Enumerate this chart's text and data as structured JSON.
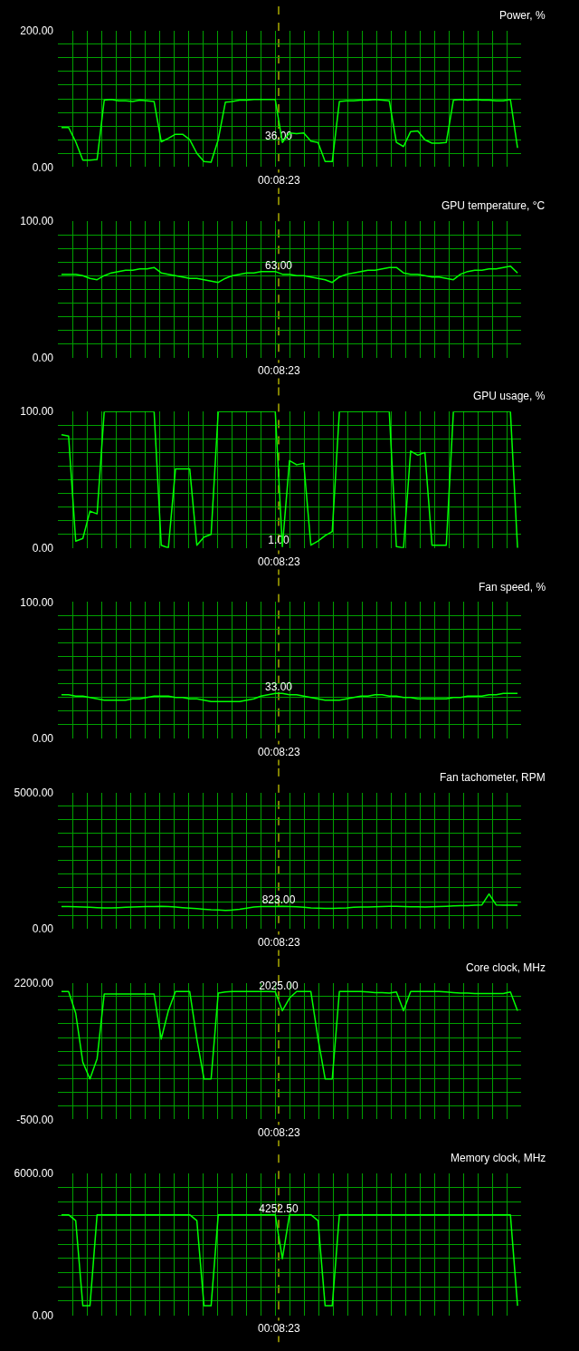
{
  "chart_data": [
    {
      "type": "line",
      "title": "Power, %",
      "categories": [
        null,
        null,
        null,
        null,
        null,
        null,
        null,
        null,
        null,
        null,
        null,
        null,
        null,
        null,
        null,
        null,
        null,
        null,
        null,
        null,
        null,
        null,
        null,
        null,
        null,
        null,
        null,
        null,
        null,
        null,
        null,
        null,
        null,
        null,
        null,
        null,
        null,
        null,
        null,
        null,
        null,
        null,
        null,
        null,
        null,
        null,
        null,
        null,
        null,
        null,
        null,
        null,
        null,
        null,
        null,
        null,
        null,
        null,
        null,
        null,
        null,
        null,
        null,
        null,
        null
      ],
      "color": "#00ff00",
      "values": [
        58,
        58,
        37,
        10,
        10,
        11,
        98,
        99,
        97,
        97,
        96,
        98,
        97,
        96,
        37,
        42,
        48,
        48,
        40,
        20,
        8,
        7,
        40,
        95,
        96,
        98,
        98,
        99,
        99,
        99,
        99,
        36,
        50,
        49,
        50,
        38,
        36,
        8,
        8,
        96,
        97,
        97,
        98,
        98,
        99,
        98,
        97,
        36,
        30,
        52,
        53,
        40,
        35,
        35,
        36,
        98,
        99,
        98,
        99,
        98,
        98,
        97,
        97,
        99,
        28
      ],
      "ylim": [
        0,
        200
      ],
      "yticks": [
        {
          "value": 0,
          "label": "0.00"
        },
        {
          "value": 20,
          "label": null
        },
        {
          "value": 40,
          "label": null
        },
        {
          "value": 60,
          "label": null
        },
        {
          "value": 80,
          "label": null
        },
        {
          "value": 100,
          "label": null
        },
        {
          "value": 120,
          "label": null
        },
        {
          "value": 140,
          "label": null
        },
        {
          "value": 160,
          "label": null
        },
        {
          "value": 180,
          "label": null
        },
        {
          "value": 200,
          "label": "200.00"
        }
      ],
      "grid": true,
      "tick_labels": "y",
      "annotations": [
        {
          "text": "36.00",
          "y": 36
        },
        "00:08:23"
      ]
    },
    {
      "type": "line",
      "title": "GPU temperature, °C",
      "categories": [
        null,
        null,
        null,
        null,
        null,
        null,
        null,
        null,
        null,
        null,
        null,
        null,
        null,
        null,
        null,
        null,
        null,
        null,
        null,
        null,
        null,
        null,
        null,
        null,
        null,
        null,
        null,
        null,
        null,
        null,
        null,
        null,
        null,
        null,
        null,
        null,
        null,
        null,
        null,
        null,
        null,
        null,
        null,
        null,
        null,
        null,
        null,
        null,
        null,
        null,
        null,
        null,
        null,
        null,
        null,
        null,
        null,
        null,
        null,
        null,
        null,
        null,
        null,
        null,
        null
      ],
      "color": "#00ff00",
      "values": [
        61,
        61,
        61,
        60,
        58,
        57,
        60,
        62,
        63,
        64,
        64,
        65,
        65,
        66,
        62,
        61,
        60,
        59,
        58,
        58,
        57,
        56,
        55,
        58,
        60,
        61,
        62,
        62,
        63,
        63,
        63,
        61,
        61,
        60,
        60,
        59,
        58,
        57,
        55,
        59,
        61,
        62,
        63,
        64,
        64,
        65,
        66,
        66,
        62,
        61,
        61,
        60,
        59,
        59,
        58,
        57,
        61,
        63,
        64,
        64,
        65,
        65,
        66,
        67,
        62
      ],
      "ylim": [
        0,
        100
      ],
      "yticks": [
        {
          "value": 0,
          "label": "0.00"
        },
        {
          "value": 10,
          "label": null
        },
        {
          "value": 20,
          "label": null
        },
        {
          "value": 30,
          "label": null
        },
        {
          "value": 40,
          "label": null
        },
        {
          "value": 50,
          "label": null
        },
        {
          "value": 60,
          "label": null
        },
        {
          "value": 70,
          "label": null
        },
        {
          "value": 80,
          "label": null
        },
        {
          "value": 90,
          "label": null
        },
        {
          "value": 100,
          "label": "100.00"
        }
      ],
      "grid": true,
      "tick_labels": "y",
      "annotations": [
        {
          "text": "63.00",
          "y": 63
        },
        "00:08:23"
      ]
    },
    {
      "type": "line",
      "title": "GPU usage, %",
      "categories": [
        null,
        null,
        null,
        null,
        null,
        null,
        null,
        null,
        null,
        null,
        null,
        null,
        null,
        null,
        null,
        null,
        null,
        null,
        null,
        null,
        null,
        null,
        null,
        null,
        null,
        null,
        null,
        null,
        null,
        null,
        null,
        null,
        null,
        null,
        null,
        null,
        null,
        null,
        null,
        null,
        null,
        null,
        null,
        null,
        null,
        null,
        null,
        null,
        null,
        null,
        null,
        null,
        null,
        null,
        null,
        null,
        null,
        null,
        null,
        null,
        null,
        null,
        null,
        null,
        null
      ],
      "color": "#00ff00",
      "values": [
        83,
        82,
        5,
        7,
        27,
        25,
        100,
        100,
        100,
        100,
        100,
        100,
        100,
        100,
        2,
        0,
        58,
        58,
        58,
        2,
        8,
        10,
        100,
        100,
        100,
        100,
        100,
        100,
        100,
        100,
        100,
        1,
        64,
        61,
        62,
        2,
        5,
        9,
        12,
        100,
        100,
        100,
        100,
        100,
        100,
        100,
        100,
        1,
        0,
        71,
        68,
        70,
        2,
        2,
        2,
        100,
        100,
        100,
        100,
        100,
        100,
        100,
        100,
        100,
        0
      ],
      "ylim": [
        0,
        100
      ],
      "yticks": [
        {
          "value": 0,
          "label": "0.00"
        },
        {
          "value": 10,
          "label": null
        },
        {
          "value": 20,
          "label": null
        },
        {
          "value": 30,
          "label": null
        },
        {
          "value": 40,
          "label": null
        },
        {
          "value": 50,
          "label": null
        },
        {
          "value": 60,
          "label": null
        },
        {
          "value": 70,
          "label": null
        },
        {
          "value": 80,
          "label": null
        },
        {
          "value": 90,
          "label": null
        },
        {
          "value": 100,
          "label": "100.00"
        }
      ],
      "grid": true,
      "tick_labels": "y",
      "annotations": [
        {
          "text": "1.00",
          "y": 1
        },
        "00:08:23"
      ]
    },
    {
      "type": "line",
      "title": "Fan speed, %",
      "categories": [
        null,
        null,
        null,
        null,
        null,
        null,
        null,
        null,
        null,
        null,
        null,
        null,
        null,
        null,
        null,
        null,
        null,
        null,
        null,
        null,
        null,
        null,
        null,
        null,
        null,
        null,
        null,
        null,
        null,
        null,
        null,
        null,
        null,
        null,
        null,
        null,
        null,
        null,
        null,
        null,
        null,
        null,
        null,
        null,
        null,
        null,
        null,
        null,
        null,
        null,
        null,
        null,
        null,
        null,
        null,
        null,
        null,
        null,
        null,
        null,
        null,
        null,
        null,
        null,
        null
      ],
      "color": "#00ff00",
      "values": [
        32,
        32,
        31,
        31,
        30,
        29,
        28,
        28,
        28,
        28,
        29,
        29,
        30,
        31,
        31,
        31,
        30,
        30,
        29,
        29,
        28,
        27,
        27,
        27,
        27,
        27,
        28,
        29,
        31,
        32,
        33,
        33,
        32,
        32,
        31,
        30,
        29,
        28,
        28,
        28,
        29,
        30,
        31,
        31,
        32,
        32,
        31,
        31,
        30,
        30,
        29,
        29,
        29,
        29,
        29,
        30,
        30,
        31,
        31,
        31,
        32,
        32,
        33,
        33,
        33
      ],
      "ylim": [
        0,
        100
      ],
      "yticks": [
        {
          "value": 0,
          "label": "0.00"
        },
        {
          "value": 10,
          "label": null
        },
        {
          "value": 20,
          "label": null
        },
        {
          "value": 30,
          "label": null
        },
        {
          "value": 40,
          "label": null
        },
        {
          "value": 50,
          "label": null
        },
        {
          "value": 60,
          "label": null
        },
        {
          "value": 70,
          "label": null
        },
        {
          "value": 80,
          "label": null
        },
        {
          "value": 90,
          "label": null
        },
        {
          "value": 100,
          "label": "100.00"
        }
      ],
      "grid": true,
      "tick_labels": "y",
      "annotations": [
        {
          "text": "33.00",
          "y": 33
        },
        "00:08:23"
      ]
    },
    {
      "type": "line",
      "title": "Fan tachometer, RPM",
      "categories": [
        null,
        null,
        null,
        null,
        null,
        null,
        null,
        null,
        null,
        null,
        null,
        null,
        null,
        null,
        null,
        null,
        null,
        null,
        null,
        null,
        null,
        null,
        null,
        null,
        null,
        null,
        null,
        null,
        null,
        null,
        null,
        null,
        null,
        null,
        null,
        null,
        null,
        null,
        null,
        null,
        null,
        null,
        null,
        null,
        null,
        null,
        null,
        null,
        null,
        null,
        null,
        null,
        null,
        null,
        null,
        null,
        null,
        null,
        null,
        null,
        null,
        null,
        null,
        null,
        null
      ],
      "color": "#00ff00",
      "values": [
        820,
        820,
        810,
        800,
        790,
        780,
        770,
        770,
        780,
        790,
        800,
        810,
        820,
        820,
        830,
        820,
        800,
        780,
        760,
        740,
        720,
        700,
        690,
        680,
        690,
        720,
        760,
        800,
        820,
        820,
        820,
        830,
        820,
        810,
        790,
        770,
        760,
        750,
        750,
        760,
        770,
        790,
        800,
        800,
        810,
        820,
        830,
        830,
        820,
        810,
        810,
        800,
        810,
        820,
        830,
        840,
        850,
        850,
        870,
        880,
        1280,
        880,
        870,
        870,
        870
      ],
      "ylim": [
        0,
        5000
      ],
      "yticks": [
        {
          "value": 0,
          "label": "0.00"
        },
        {
          "value": 500,
          "label": null
        },
        {
          "value": 1000,
          "label": null
        },
        {
          "value": 1500,
          "label": null
        },
        {
          "value": 2000,
          "label": null
        },
        {
          "value": 2500,
          "label": null
        },
        {
          "value": 3000,
          "label": null
        },
        {
          "value": 3500,
          "label": null
        },
        {
          "value": 4000,
          "label": null
        },
        {
          "value": 4500,
          "label": null
        },
        {
          "value": 5000,
          "label": "5000.00"
        }
      ],
      "grid": true,
      "tick_labels": "y",
      "annotations": [
        {
          "text": "823.00",
          "y": 823
        },
        "00:08:23"
      ]
    },
    {
      "type": "line",
      "title": "Core clock, MHz",
      "categories": [
        null,
        null,
        null,
        null,
        null,
        null,
        null,
        null,
        null,
        null,
        null,
        null,
        null,
        null,
        null,
        null,
        null,
        null,
        null,
        null,
        null,
        null,
        null,
        null,
        null,
        null,
        null,
        null,
        null,
        null,
        null,
        null,
        null,
        null,
        null,
        null,
        null,
        null,
        null,
        null,
        null,
        null,
        null,
        null,
        null,
        null,
        null,
        null,
        null,
        null,
        null,
        null,
        null,
        null,
        null,
        null,
        null,
        null,
        null,
        null,
        null,
        null,
        null,
        null,
        null
      ],
      "color": "#00ff00",
      "values": [
        2030,
        2030,
        1600,
        630,
        300,
        700,
        1980,
        1980,
        1980,
        1980,
        1980,
        1980,
        1980,
        1980,
        1090,
        1650,
        2030,
        2030,
        2030,
        1090,
        300,
        300,
        2000,
        2020,
        2030,
        2030,
        2030,
        2030,
        2030,
        2030,
        2025,
        1650,
        1900,
        2030,
        2030,
        2030,
        1100,
        300,
        300,
        2030,
        2030,
        2030,
        2030,
        2020,
        2010,
        2010,
        2000,
        2020,
        1650,
        2030,
        2030,
        2030,
        2030,
        2030,
        2020,
        2010,
        2000,
        2000,
        1990,
        1990,
        1990,
        1990,
        1990,
        2020,
        1650
      ],
      "ylim": [
        -500,
        2200
      ],
      "yticks": [
        {
          "value": -500,
          "label": "-500.00"
        },
        {
          "value": -230,
          "label": null
        },
        {
          "value": 40,
          "label": null
        },
        {
          "value": 310,
          "label": null
        },
        {
          "value": 580,
          "label": null
        },
        {
          "value": 850,
          "label": null
        },
        {
          "value": 1120,
          "label": null
        },
        {
          "value": 1390,
          "label": null
        },
        {
          "value": 1660,
          "label": null
        },
        {
          "value": 1930,
          "label": null
        },
        {
          "value": 2200,
          "label": "2200.00"
        }
      ],
      "grid": true,
      "tick_labels": "y",
      "annotations": [
        {
          "text": "2025.00",
          "y": 2025
        },
        "00:08:23"
      ]
    },
    {
      "type": "line",
      "title": "Memory clock, MHz",
      "categories": [
        null,
        null,
        null,
        null,
        null,
        null,
        null,
        null,
        null,
        null,
        null,
        null,
        null,
        null,
        null,
        null,
        null,
        null,
        null,
        null,
        null,
        null,
        null,
        null,
        null,
        null,
        null,
        null,
        null,
        null,
        null,
        null,
        null,
        null,
        null,
        null,
        null,
        null,
        null,
        null,
        null,
        null,
        null,
        null,
        null,
        null,
        null,
        null,
        null,
        null,
        null,
        null,
        null,
        null,
        null,
        null,
        null,
        null,
        null,
        null,
        null,
        null,
        null,
        null,
        null
      ],
      "color": "#00ff00",
      "values": [
        4250,
        4250,
        4000,
        400,
        400,
        4250,
        4250,
        4250,
        4250,
        4250,
        4250,
        4250,
        4250,
        4250,
        4250,
        4250,
        4250,
        4250,
        4250,
        4000,
        400,
        400,
        4250,
        4250,
        4250,
        4250,
        4250,
        4250,
        4250,
        4250,
        4252.5,
        2390,
        4250,
        4250,
        4250,
        4250,
        4000,
        400,
        400,
        4250,
        4250,
        4250,
        4250,
        4250,
        4250,
        4250,
        4250,
        4250,
        4250,
        4250,
        4250,
        4250,
        4250,
        4250,
        4250,
        4250,
        4250,
        4250,
        4250,
        4250,
        4250,
        4250,
        4250,
        4250,
        400
      ],
      "ylim": [
        0,
        6000
      ],
      "yticks": [
        {
          "value": 0,
          "label": "0.00"
        },
        {
          "value": 600,
          "label": null
        },
        {
          "value": 1200,
          "label": null
        },
        {
          "value": 1800,
          "label": null
        },
        {
          "value": 2400,
          "label": null
        },
        {
          "value": 3000,
          "label": null
        },
        {
          "value": 3600,
          "label": null
        },
        {
          "value": 4200,
          "label": null
        },
        {
          "value": 4800,
          "label": null
        },
        {
          "value": 5400,
          "label": null
        },
        {
          "value": 6000,
          "label": "6000.00"
        }
      ],
      "grid": true,
      "tick_labels": "y",
      "annotations": [
        {
          "text": "4252.50",
          "y": 4252.5
        },
        "00:08:23"
      ]
    }
  ]
}
